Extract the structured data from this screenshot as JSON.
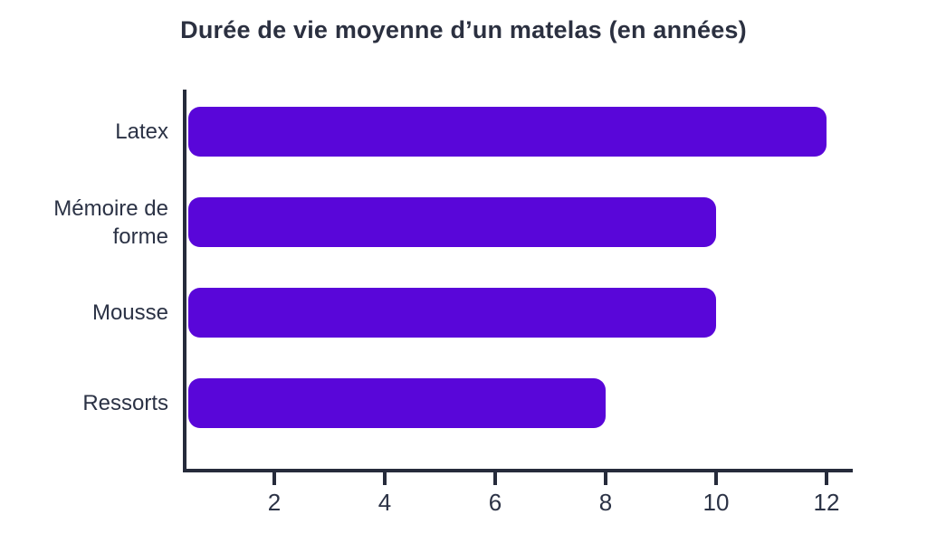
{
  "title": "Durée de vie moyenne d’un matelas (en années)",
  "colors": {
    "bar": "#5906D9",
    "axis": "#262B3B",
    "text": "#2B3245",
    "title_text": "#2B3040",
    "background": "#FFFFFF"
  },
  "chart_data": {
    "type": "bar",
    "orientation": "horizontal",
    "title": "Durée de vie moyenne d’un matelas (en années)",
    "categories": [
      "Latex",
      "Mémoire de forme",
      "Mousse",
      "Ressorts"
    ],
    "values": [
      12,
      10,
      10,
      8
    ],
    "xlabel": "",
    "ylabel": "",
    "xticks": [
      2,
      4,
      6,
      8,
      10,
      12
    ],
    "xtick_labels": [
      "2",
      "4",
      "6",
      "8",
      "10",
      "12"
    ],
    "xlim": [
      0,
      12.4
    ],
    "grid": false,
    "legend": false
  }
}
